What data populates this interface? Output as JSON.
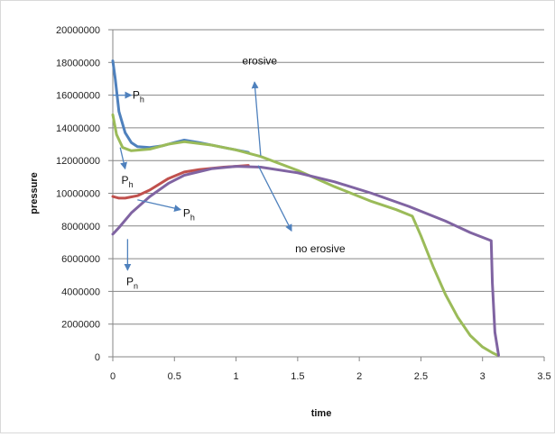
{
  "chart_data": {
    "type": "line",
    "title": "",
    "xlabel": "time",
    "ylabel": "pressure",
    "xlim": [
      0,
      3.5
    ],
    "ylim": [
      0,
      20000000
    ],
    "x_ticks": [
      0,
      0.5,
      1,
      1.5,
      2,
      2.5,
      3,
      3.5
    ],
    "x_tick_labels": [
      "0",
      "0.5",
      "1",
      "1.5",
      "2",
      "2.5",
      "3",
      "3.5"
    ],
    "y_ticks": [
      0,
      2000000,
      4000000,
      6000000,
      8000000,
      10000000,
      12000000,
      14000000,
      16000000,
      18000000,
      20000000
    ],
    "y_tick_labels": [
      "0",
      "2000000",
      "4000000",
      "6000000",
      "8000000",
      "10000000",
      "12000000",
      "14000000",
      "16000000",
      "18000000",
      "20000000"
    ],
    "grid": "horizontal",
    "legend": "none",
    "colors": {
      "blue": "#4f81bd",
      "green": "#9bbb59",
      "red": "#c0504d",
      "purple": "#8064a2",
      "arrow": "#4f81bd"
    },
    "series": [
      {
        "color": "#4f81bd",
        "points": [
          [
            0.0,
            18100000
          ],
          [
            0.02,
            17000000
          ],
          [
            0.05,
            15000000
          ],
          [
            0.1,
            13700000
          ],
          [
            0.15,
            13100000
          ],
          [
            0.2,
            12850000
          ],
          [
            0.3,
            12800000
          ],
          [
            0.4,
            12900000
          ],
          [
            0.5,
            13100000
          ],
          [
            0.58,
            13250000
          ],
          [
            0.7,
            13100000
          ],
          [
            0.9,
            12800000
          ],
          [
            1.1,
            12500000
          ]
        ]
      },
      {
        "color": "#c0504d",
        "points": [
          [
            0.0,
            9800000
          ],
          [
            0.05,
            9700000
          ],
          [
            0.1,
            9700000
          ],
          [
            0.2,
            9850000
          ],
          [
            0.3,
            10200000
          ],
          [
            0.45,
            10900000
          ],
          [
            0.58,
            11300000
          ],
          [
            0.7,
            11450000
          ],
          [
            0.9,
            11600000
          ],
          [
            1.1,
            11700000
          ]
        ]
      },
      {
        "color": "#9bbb59",
        "points": [
          [
            0.0,
            14800000
          ],
          [
            0.03,
            13600000
          ],
          [
            0.08,
            12800000
          ],
          [
            0.15,
            12600000
          ],
          [
            0.3,
            12700000
          ],
          [
            0.45,
            13000000
          ],
          [
            0.58,
            13150000
          ],
          [
            0.8,
            12950000
          ],
          [
            1.0,
            12650000
          ],
          [
            1.2,
            12250000
          ],
          [
            1.5,
            11400000
          ],
          [
            1.8,
            10400000
          ],
          [
            2.1,
            9500000
          ],
          [
            2.3,
            9000000
          ],
          [
            2.43,
            8600000
          ],
          [
            2.5,
            7400000
          ],
          [
            2.6,
            5500000
          ],
          [
            2.7,
            3800000
          ],
          [
            2.8,
            2400000
          ],
          [
            2.9,
            1300000
          ],
          [
            3.0,
            600000
          ],
          [
            3.08,
            250000
          ],
          [
            3.12,
            100000
          ]
        ]
      },
      {
        "color": "#8064a2",
        "points": [
          [
            0.0,
            7500000
          ],
          [
            0.05,
            7900000
          ],
          [
            0.15,
            8800000
          ],
          [
            0.3,
            9800000
          ],
          [
            0.45,
            10600000
          ],
          [
            0.58,
            11100000
          ],
          [
            0.8,
            11500000
          ],
          [
            1.0,
            11650000
          ],
          [
            1.2,
            11600000
          ],
          [
            1.5,
            11250000
          ],
          [
            1.8,
            10700000
          ],
          [
            2.1,
            10000000
          ],
          [
            2.4,
            9200000
          ],
          [
            2.7,
            8300000
          ],
          [
            2.9,
            7600000
          ],
          [
            3.07,
            7100000
          ],
          [
            3.08,
            4500000
          ],
          [
            3.1,
            1500000
          ],
          [
            3.13,
            100000
          ]
        ]
      }
    ],
    "annotations": [
      {
        "main": "P",
        "sub": "h",
        "arrow_from": [
          0.0,
          16000000
        ],
        "arrow_to": [
          0.15,
          16000000
        ],
        "label_at": [
          0.16,
          16000000
        ]
      },
      {
        "main": "P",
        "sub": "h",
        "arrow_from": [
          0.06,
          12800000
        ],
        "arrow_to": [
          0.1,
          11500000
        ],
        "label_at": [
          0.07,
          10800000
        ]
      },
      {
        "main": "P",
        "sub": "h",
        "arrow_from": [
          0.2,
          9600000
        ],
        "arrow_to": [
          0.55,
          9000000
        ],
        "label_at": [
          0.57,
          8800000
        ]
      },
      {
        "main": "P",
        "sub": "n",
        "arrow_from": [
          0.12,
          7200000
        ],
        "arrow_to": [
          0.12,
          5300000
        ],
        "label_at": [
          0.11,
          4600000
        ]
      },
      {
        "main": "erosive",
        "sub": "",
        "arrow_from": [
          1.2,
          12300000
        ],
        "arrow_to": [
          1.15,
          16800000
        ],
        "label_at": [
          1.05,
          18100000
        ]
      },
      {
        "main": "no erosive",
        "sub": "",
        "arrow_from": [
          1.18,
          11700000
        ],
        "arrow_to": [
          1.45,
          7700000
        ],
        "label_at": [
          1.48,
          6600000
        ]
      }
    ]
  }
}
